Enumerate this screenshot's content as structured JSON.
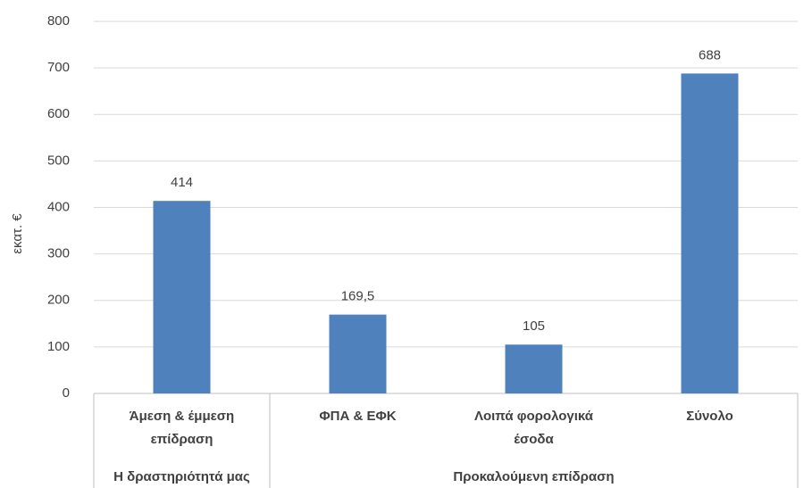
{
  "chart_data": {
    "type": "bar",
    "y_label": "εκατ. €",
    "color": "#4f81bd",
    "ylim": [
      0,
      800
    ],
    "yticks": [
      0,
      100,
      200,
      300,
      400,
      500,
      600,
      700,
      800
    ],
    "grid": true,
    "groups": [
      {
        "name": "Η δραστηριότητά μας",
        "categories": [
          "Άμεση & έμμεση επίδραση"
        ],
        "values": [
          414
        ],
        "value_labels": [
          "414"
        ]
      },
      {
        "name": "Προκαλούμενη επίδραση",
        "categories": [
          "ΦΠΑ & ΕΦΚ",
          "Λοιπά φορολογικά έσοδα",
          "Σύνολο"
        ],
        "values": [
          169.5,
          105,
          688
        ],
        "value_labels": [
          "169,5",
          "105",
          "688"
        ]
      }
    ]
  }
}
